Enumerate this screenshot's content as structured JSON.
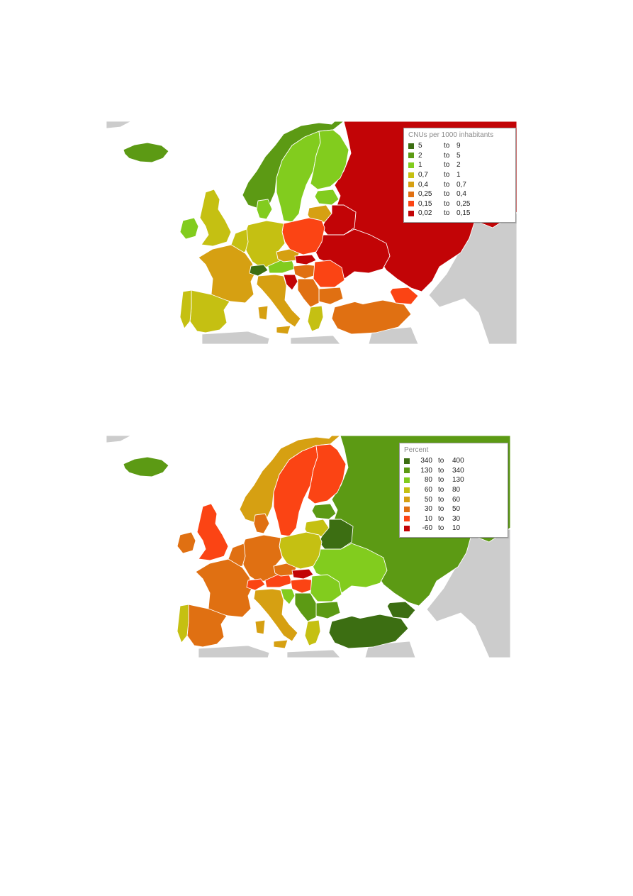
{
  "colors": {
    "sea": "#ffffff",
    "non_data_land": "#cccccc",
    "border": "#ffffff"
  },
  "maps": [
    {
      "legend_title": "CNUs per 1000 inhabitants",
      "legend": [
        {
          "from": "5",
          "sep": "to",
          "to": "9",
          "color": "#3c6e12"
        },
        {
          "from": "2",
          "sep": "to",
          "to": "5",
          "color": "#5c9a14"
        },
        {
          "from": "1",
          "sep": "to",
          "to": "2",
          "color": "#82cc1e"
        },
        {
          "from": "0,7",
          "sep": "to",
          "to": "1",
          "color": "#c5c012"
        },
        {
          "from": "0,4",
          "sep": "to",
          "to": "0,7",
          "color": "#d6a012"
        },
        {
          "from": "0,25",
          "sep": "to",
          "to": "0,4",
          "color": "#e07012"
        },
        {
          "from": "0,15",
          "sep": "to",
          "to": "0,25",
          "color": "#fb4414"
        },
        {
          "from": "0,02",
          "sep": "to",
          "to": "0,15",
          "color": "#c20406"
        }
      ],
      "regions": {
        "iceland": "#5c9a14",
        "norway": "#5c9a14",
        "sweden": "#82cc1e",
        "finland": "#82cc1e",
        "russia": "#c20406",
        "uk": "#c5c012",
        "ireland": "#82cc1e",
        "denmark": "#82cc1e",
        "france": "#d6a012",
        "spain": "#c5c012",
        "portugal": "#c5c012",
        "benelux": "#c5c012",
        "germany": "#c5c012",
        "poland": "#fb4414",
        "baltics": "#82cc1e",
        "lithuania": "#d6a012",
        "belarus": "#c20406",
        "ukraine": "#c20406",
        "italy": "#d6a012",
        "switzerland": "#3c6e12",
        "austria": "#82cc1e",
        "czechia": "#d6a012",
        "slovakia": "#c20406",
        "hungary": "#e07012",
        "romania": "#fb4414",
        "bulgaria": "#e07012",
        "balkans": "#e07012",
        "croatia": "#c20406",
        "greece": "#c5c012",
        "turkey": "#e07012",
        "caucasus": "#fb4414"
      }
    },
    {
      "legend_title": "Percent",
      "legend": [
        {
          "from": "340",
          "sep": "to",
          "to": "400",
          "color": "#3c6e12"
        },
        {
          "from": "130",
          "sep": "to",
          "to": "340",
          "color": "#5c9a14"
        },
        {
          "from": "80",
          "sep": "to",
          "to": "130",
          "color": "#82cc1e"
        },
        {
          "from": "60",
          "sep": "to",
          "to": "80",
          "color": "#c5c012"
        },
        {
          "from": "50",
          "sep": "to",
          "to": "60",
          "color": "#d6a012"
        },
        {
          "from": "30",
          "sep": "to",
          "to": "50",
          "color": "#e07012"
        },
        {
          "from": "10",
          "sep": "to",
          "to": "30",
          "color": "#fb4414"
        },
        {
          "from": "-60",
          "sep": "to",
          "to": "10",
          "color": "#c20406"
        }
      ],
      "regions": {
        "iceland": "#5c9a14",
        "norway": "#d6a012",
        "sweden": "#fb4414",
        "finland": "#fb4414",
        "russia": "#5c9a14",
        "uk": "#fb4414",
        "ireland": "#e07012",
        "denmark": "#e07012",
        "france": "#e07012",
        "spain": "#e07012",
        "portugal": "#c5c012",
        "benelux": "#e07012",
        "germany": "#e07012",
        "poland": "#c5c012",
        "baltics": "#5c9a14",
        "lithuania": "#c5c012",
        "belarus": "#3c6e12",
        "ukraine": "#82cc1e",
        "italy": "#d6a012",
        "switzerland": "#fb4414",
        "austria": "#fb4414",
        "czechia": "#e07012",
        "slovakia": "#c20406",
        "hungary": "#fb4414",
        "romania": "#82cc1e",
        "bulgaria": "#5c9a14",
        "balkans": "#5c9a14",
        "croatia": "#82cc1e",
        "greece": "#c5c012",
        "turkey": "#3c6e12",
        "caucasus": "#3c6e12"
      }
    }
  ]
}
